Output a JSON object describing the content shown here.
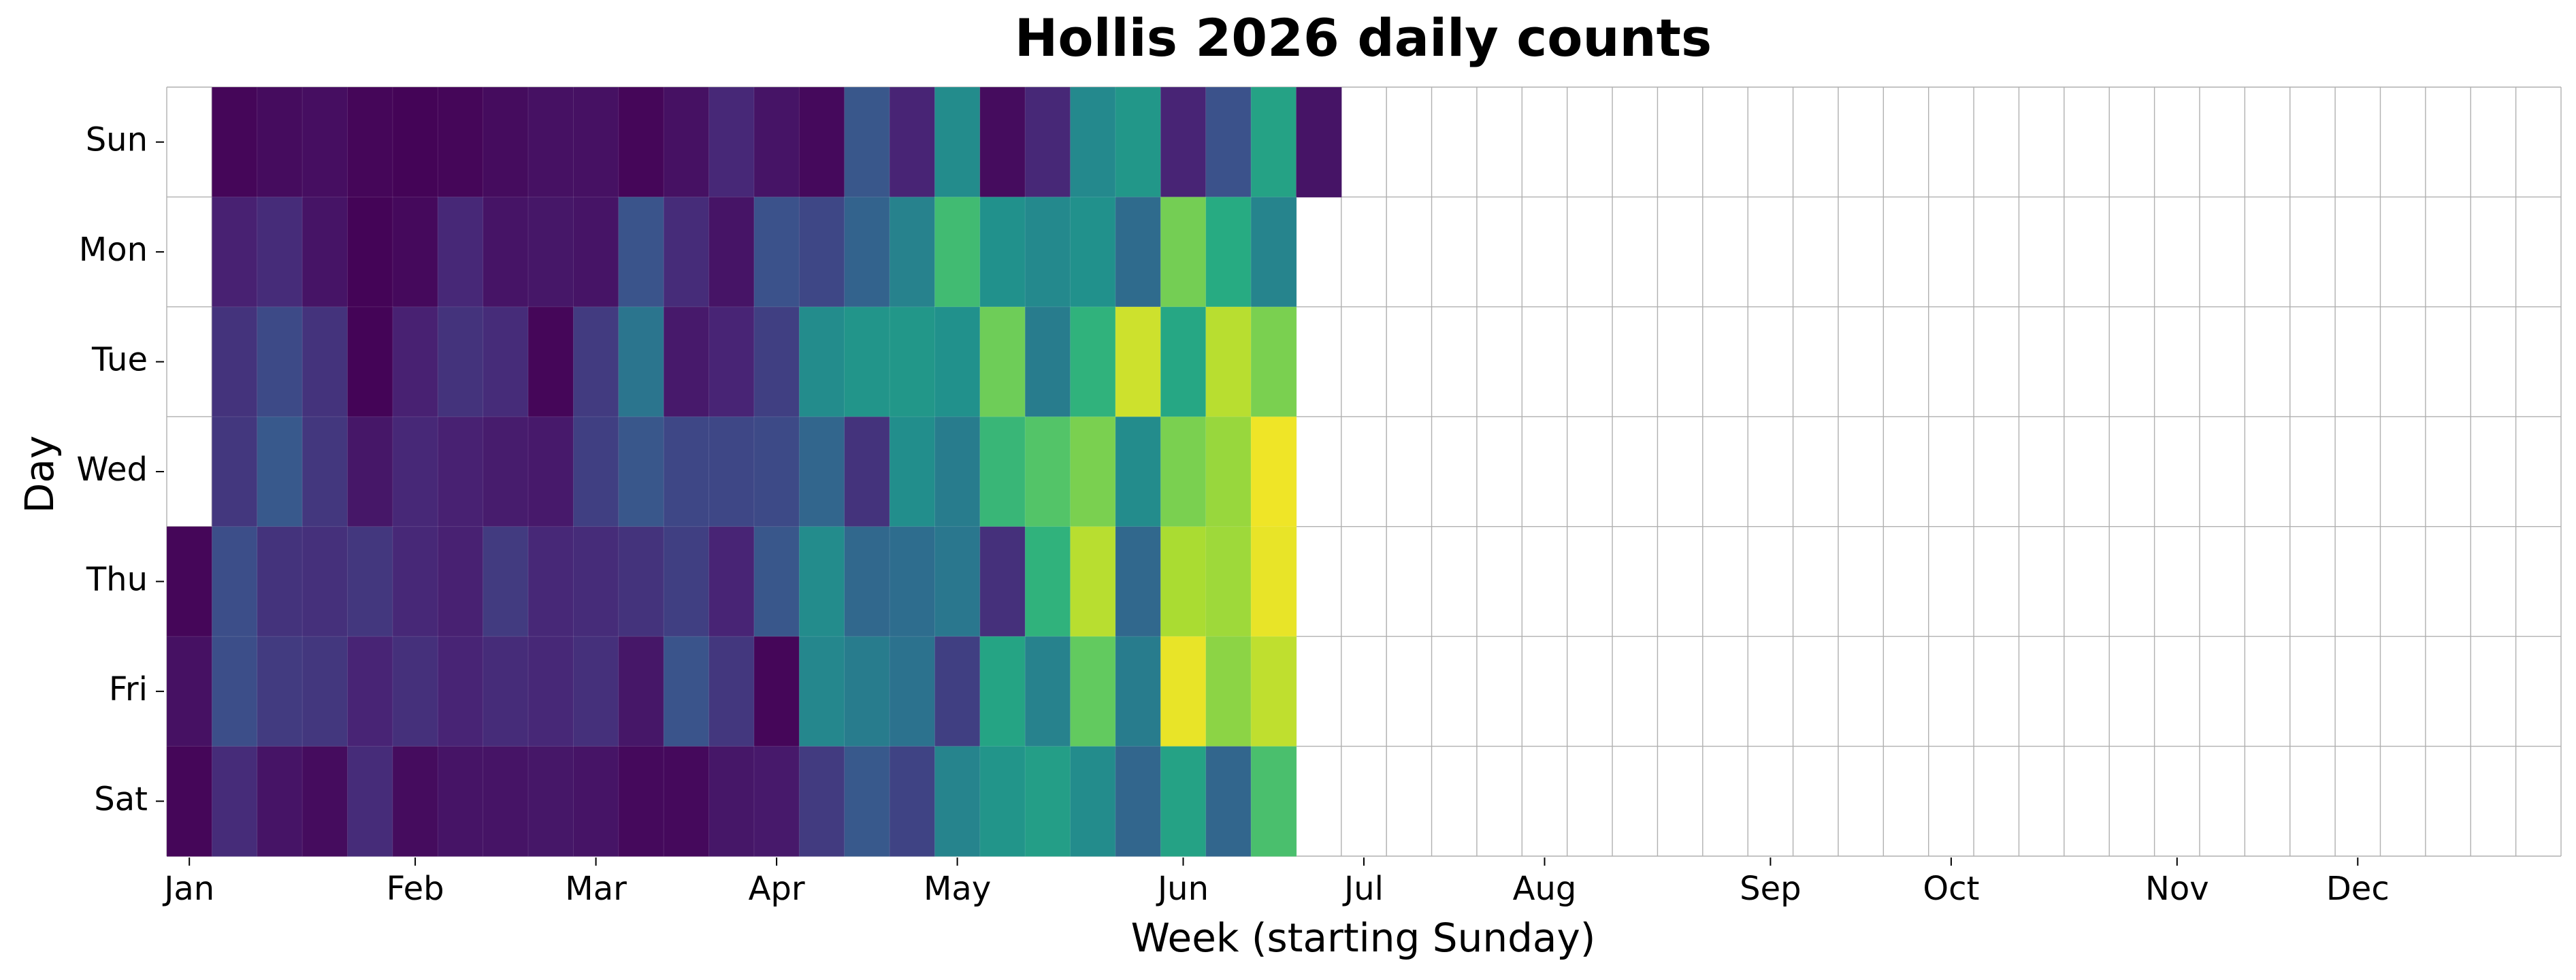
{
  "chart_data": {
    "type": "heatmap",
    "title": "Hollis 2026 daily counts",
    "xlabel": "Week (starting Sunday)",
    "ylabel": "Day",
    "rows": [
      "Sun",
      "Mon",
      "Tue",
      "Wed",
      "Thu",
      "Fri",
      "Sat"
    ],
    "month_ticks": [
      {
        "label": "Jan",
        "week": 0.5
      },
      {
        "label": "Feb",
        "week": 5.5
      },
      {
        "label": "Mar",
        "week": 9.5
      },
      {
        "label": "Apr",
        "week": 13.5
      },
      {
        "label": "May",
        "week": 17.5
      },
      {
        "label": "Jun",
        "week": 22.5
      },
      {
        "label": "Jul",
        "week": 26.5
      },
      {
        "label": "Aug",
        "week": 30.5
      },
      {
        "label": "Sep",
        "week": 35.5
      },
      {
        "label": "Oct",
        "week": 39.5
      },
      {
        "label": "Nov",
        "week": 44.5
      },
      {
        "label": "Dec",
        "week": 48.5
      }
    ],
    "num_weeks": 53,
    "colormap": "viridis",
    "value_range": [
      0,
      1
    ],
    "grid": true,
    "grid_color": "#b0b0b0",
    "values": [
      [
        null,
        0.02,
        0.04,
        0.05,
        0.02,
        0.01,
        0.02,
        0.04,
        0.06,
        0.06,
        0.02,
        0.06,
        0.14,
        0.07,
        0.03,
        0.27,
        0.13,
        0.48,
        0.04,
        0.14,
        0.47,
        0.53,
        0.13,
        0.25,
        0.58,
        0.07
      ],
      [
        null,
        0.12,
        0.15,
        0.07,
        0.01,
        0.03,
        0.14,
        0.07,
        0.08,
        0.07,
        0.26,
        0.15,
        0.07,
        0.25,
        0.22,
        0.32,
        0.44,
        0.69,
        0.5,
        0.47,
        0.5,
        0.35,
        0.79,
        0.62,
        0.45
      ],
      [
        null,
        0.17,
        0.23,
        0.17,
        0.01,
        0.12,
        0.17,
        0.15,
        0.02,
        0.19,
        0.39,
        0.09,
        0.13,
        0.2,
        0.48,
        0.52,
        0.53,
        0.5,
        0.78,
        0.42,
        0.65,
        0.93,
        0.6,
        0.9,
        0.8
      ],
      [
        null,
        0.18,
        0.28,
        0.18,
        0.08,
        0.14,
        0.12,
        0.1,
        0.09,
        0.2,
        0.27,
        0.22,
        0.22,
        0.23,
        0.33,
        0.17,
        0.49,
        0.42,
        0.67,
        0.73,
        0.8,
        0.48,
        0.8,
        0.85,
        0.98
      ],
      [
        0.02,
        0.24,
        0.17,
        0.16,
        0.18,
        0.14,
        0.12,
        0.19,
        0.14,
        0.15,
        0.17,
        0.2,
        0.13,
        0.27,
        0.48,
        0.34,
        0.36,
        0.4,
        0.16,
        0.65,
        0.9,
        0.34,
        0.88,
        0.86,
        0.97
      ],
      [
        0.06,
        0.24,
        0.19,
        0.18,
        0.13,
        0.16,
        0.13,
        0.15,
        0.14,
        0.16,
        0.08,
        0.26,
        0.18,
        0.02,
        0.46,
        0.42,
        0.38,
        0.2,
        0.59,
        0.44,
        0.76,
        0.42,
        0.97,
        0.83,
        0.91
      ],
      [
        0.02,
        0.15,
        0.07,
        0.04,
        0.15,
        0.04,
        0.07,
        0.07,
        0.08,
        0.07,
        0.03,
        0.03,
        0.08,
        0.09,
        0.19,
        0.28,
        0.21,
        0.45,
        0.52,
        0.56,
        0.48,
        0.33,
        0.58,
        0.33,
        0.71
      ]
    ]
  }
}
